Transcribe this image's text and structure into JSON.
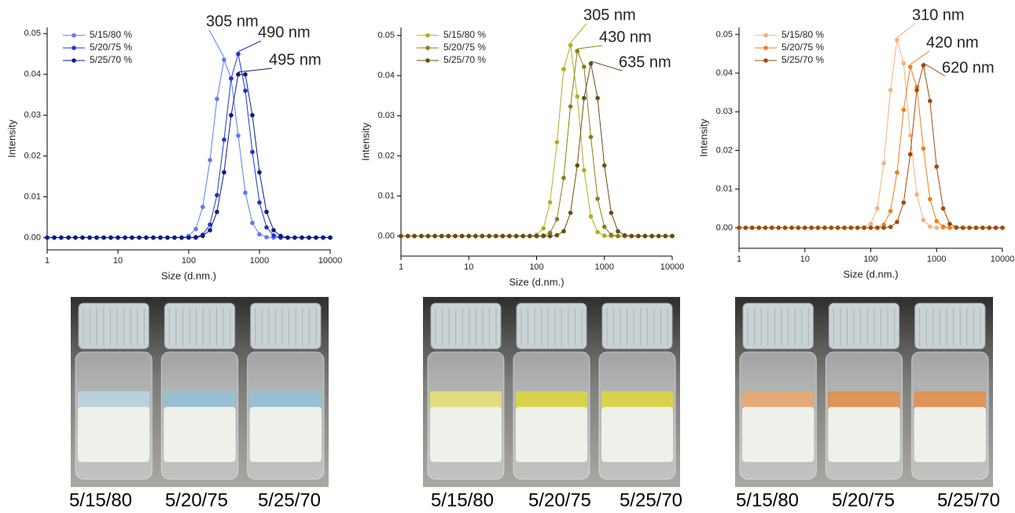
{
  "chart_data": [
    {
      "type": "line",
      "xlabel": "Size (d.nm.)",
      "ylabel": "Intensity",
      "log_x": true,
      "legend": "upper-left",
      "x": [
        1,
        1.26,
        1.58,
        2,
        2.51,
        3.16,
        3.98,
        5.01,
        6.31,
        7.94,
        10,
        12.6,
        15.8,
        20,
        25.1,
        31.6,
        39.8,
        50.1,
        63.1,
        79.4,
        100,
        126,
        158,
        200,
        251,
        316,
        398,
        501,
        631,
        794,
        1000,
        1259,
        1585,
        1995,
        2512,
        3162,
        3981,
        5012,
        6310,
        7943,
        10000
      ],
      "xlim": [
        1,
        10000
      ],
      "xticks": [
        1,
        10,
        100,
        1000,
        10000
      ],
      "ylim": [
        -0.003,
        0.0515
      ],
      "yticks": [
        {
          "value": 0,
          "label": "0.00"
        },
        0.01,
        0.02,
        0.03,
        0.04,
        0.05
      ],
      "series": [
        {
          "name": "5/15/80 %",
          "color": "#5b7cf5",
          "values": [
            0,
            0,
            0,
            0,
            0,
            0,
            0,
            0,
            0,
            0,
            0,
            0,
            0,
            0,
            0,
            0,
            0,
            0,
            0,
            0,
            0.0004,
            0.0021,
            0.0075,
            0.019,
            0.034,
            0.0436,
            0.039,
            0.025,
            0.011,
            0.0036,
            0.0008,
            0.0001,
            0,
            0,
            0,
            0,
            0,
            0,
            0,
            0,
            0
          ]
        },
        {
          "name": "5/20/75 %",
          "color": "#1f33d0",
          "values": [
            0,
            0,
            0,
            0,
            0,
            0,
            0,
            0,
            0,
            0,
            0,
            0,
            0,
            0,
            0,
            0,
            0,
            0,
            0,
            0,
            0,
            0.0001,
            0.0007,
            0.0032,
            0.0104,
            0.024,
            0.039,
            0.045,
            0.036,
            0.021,
            0.0086,
            0.0025,
            0.0005,
            0,
            0,
            0,
            0,
            0,
            0,
            0,
            0
          ]
        },
        {
          "name": "5/25/70 %",
          "color": "#0d1a85",
          "values": [
            0,
            0,
            0,
            0,
            0,
            0,
            0,
            0,
            0,
            0,
            0,
            0,
            0,
            0,
            0,
            0,
            0,
            0,
            0,
            0,
            0,
            0,
            0.0004,
            0.0018,
            0.0063,
            0.016,
            0.03,
            0.04,
            0.04,
            0.03,
            0.016,
            0.0063,
            0.0018,
            0.0004,
            0,
            0,
            0,
            0,
            0,
            0,
            0
          ]
        }
      ],
      "annotations": [
        "305 nm",
        "490 nm",
        "495 nm"
      ]
    },
    {
      "type": "line",
      "xlabel": "Size (d.nm.)",
      "ylabel": "Intensity",
      "log_x": true,
      "legend": "upper-left",
      "x": [
        1,
        1.26,
        1.58,
        2,
        2.51,
        3.16,
        3.98,
        5.01,
        6.31,
        7.94,
        10,
        12.6,
        15.8,
        20,
        25.1,
        31.6,
        39.8,
        50.1,
        63.1,
        79.4,
        100,
        126,
        158,
        200,
        251,
        316,
        398,
        501,
        631,
        794,
        1000,
        1259,
        1585,
        1995,
        2512,
        3162,
        3981,
        5012,
        6310,
        7943,
        10000
      ],
      "xlim": [
        1,
        10000
      ],
      "xticks": [
        1,
        10,
        100,
        1000,
        10000
      ],
      "ylim": [
        -0.005,
        0.052
      ],
      "yticks": [
        {
          "value": 0,
          "label": "0.00"
        },
        0.01,
        0.02,
        0.03,
        0.04,
        0.05
      ],
      "series": [
        {
          "name": "5/15/80 %",
          "color": "#b5ad1c",
          "values": [
            0,
            0,
            0,
            0,
            0,
            0,
            0,
            0,
            0,
            0,
            0,
            0,
            0,
            0,
            0,
            0,
            0,
            0,
            0,
            0,
            0.0003,
            0.0019,
            0.0084,
            0.0234,
            0.0416,
            0.0476,
            0.0348,
            0.0164,
            0.0049,
            0.001,
            0.0001,
            0,
            0,
            0,
            0,
            0,
            0,
            0,
            0,
            0,
            0
          ]
        },
        {
          "name": "5/20/75 %",
          "color": "#8c7d14",
          "values": [
            0,
            0,
            0,
            0,
            0,
            0,
            0,
            0,
            0,
            0,
            0,
            0,
            0,
            0,
            0,
            0,
            0,
            0,
            0,
            0,
            0,
            0.0001,
            0.0008,
            0.0042,
            0.0145,
            0.0323,
            0.0461,
            0.0422,
            0.0247,
            0.0093,
            0.0023,
            0.0003,
            0,
            0,
            0,
            0,
            0,
            0,
            0,
            0,
            0
          ]
        },
        {
          "name": "5/25/70 %",
          "color": "#6b4c12",
          "values": [
            0,
            0,
            0,
            0,
            0,
            0,
            0,
            0,
            0,
            0,
            0,
            0,
            0,
            0,
            0,
            0,
            0,
            0,
            0,
            0,
            0,
            0,
            0,
            0.0002,
            0.0012,
            0.0058,
            0.0176,
            0.0344,
            0.043,
            0.0344,
            0.0176,
            0.0058,
            0.0012,
            0.0002,
            0,
            0,
            0,
            0,
            0,
            0,
            0
          ]
        }
      ],
      "annotations": [
        "305 nm",
        "430 nm",
        "635 nm"
      ]
    },
    {
      "type": "line",
      "xlabel": "Size (d.nm.)",
      "ylabel": "Intensity",
      "log_x": true,
      "legend": "upper-left",
      "x": [
        1,
        1.26,
        1.58,
        2,
        2.51,
        3.16,
        3.98,
        5.01,
        6.31,
        7.94,
        10,
        12.6,
        15.8,
        20,
        25.1,
        31.6,
        39.8,
        50.1,
        63.1,
        79.4,
        100,
        126,
        158,
        200,
        251,
        316,
        398,
        501,
        631,
        794,
        1000,
        1259,
        1585,
        1995,
        2512,
        3162,
        3981,
        5012,
        6310,
        7943,
        10000
      ],
      "xlim": [
        1,
        10000
      ],
      "xticks": [
        1,
        10,
        100,
        1000,
        10000
      ],
      "ylim": [
        -0.0053,
        0.0518
      ],
      "yticks": [
        {
          "value": 0,
          "label": "0.00"
        },
        0.01,
        0.02,
        0.03,
        0.04,
        0.05
      ],
      "series": [
        {
          "name": "5/15/80 %",
          "color": "#f4b07e",
          "values": [
            0,
            0,
            0,
            0,
            0,
            0,
            0,
            0,
            0,
            0,
            0,
            0,
            0,
            0,
            0,
            0,
            0,
            0,
            0,
            0.0001,
            0.001,
            0.005,
            0.0167,
            0.0356,
            0.0486,
            0.0425,
            0.0239,
            0.0086,
            0.002,
            0.0003,
            0,
            0,
            0,
            0,
            0,
            0,
            0,
            0,
            0,
            0,
            0
          ]
        },
        {
          "name": "5/20/75 %",
          "color": "#f07d1a",
          "values": [
            0,
            0,
            0,
            0,
            0,
            0,
            0,
            0,
            0,
            0,
            0,
            0,
            0,
            0,
            0,
            0,
            0,
            0,
            0,
            0,
            0,
            0,
            0.0008,
            0.0043,
            0.0143,
            0.0305,
            0.0416,
            0.0364,
            0.0205,
            0.0074,
            0.0017,
            0.0003,
            0,
            0,
            0,
            0,
            0,
            0,
            0,
            0,
            0
          ]
        },
        {
          "name": "5/25/70 %",
          "color": "#a04a0c",
          "values": [
            0,
            0,
            0,
            0,
            0,
            0,
            0,
            0,
            0,
            0,
            0,
            0,
            0,
            0,
            0,
            0,
            0,
            0,
            0,
            0,
            0,
            0,
            0,
            0.0002,
            0.0015,
            0.0065,
            0.019,
            0.0356,
            0.042,
            0.0328,
            0.0158,
            0.005,
            0.001,
            0.0001,
            0,
            0,
            0,
            0,
            0,
            0,
            0
          ]
        }
      ],
      "annotations": [
        "310 nm",
        "420 nm",
        "620 nm"
      ]
    }
  ],
  "photos": [
    {
      "captions": [
        "5/15/80",
        "5/20/75",
        "5/25/70"
      ]
    },
    {
      "captions": [
        "5/15/80",
        "5/20/75",
        "5/25/70"
      ]
    },
    {
      "captions": [
        "5/15/80",
        "5/20/75",
        "5/25/70"
      ]
    }
  ]
}
